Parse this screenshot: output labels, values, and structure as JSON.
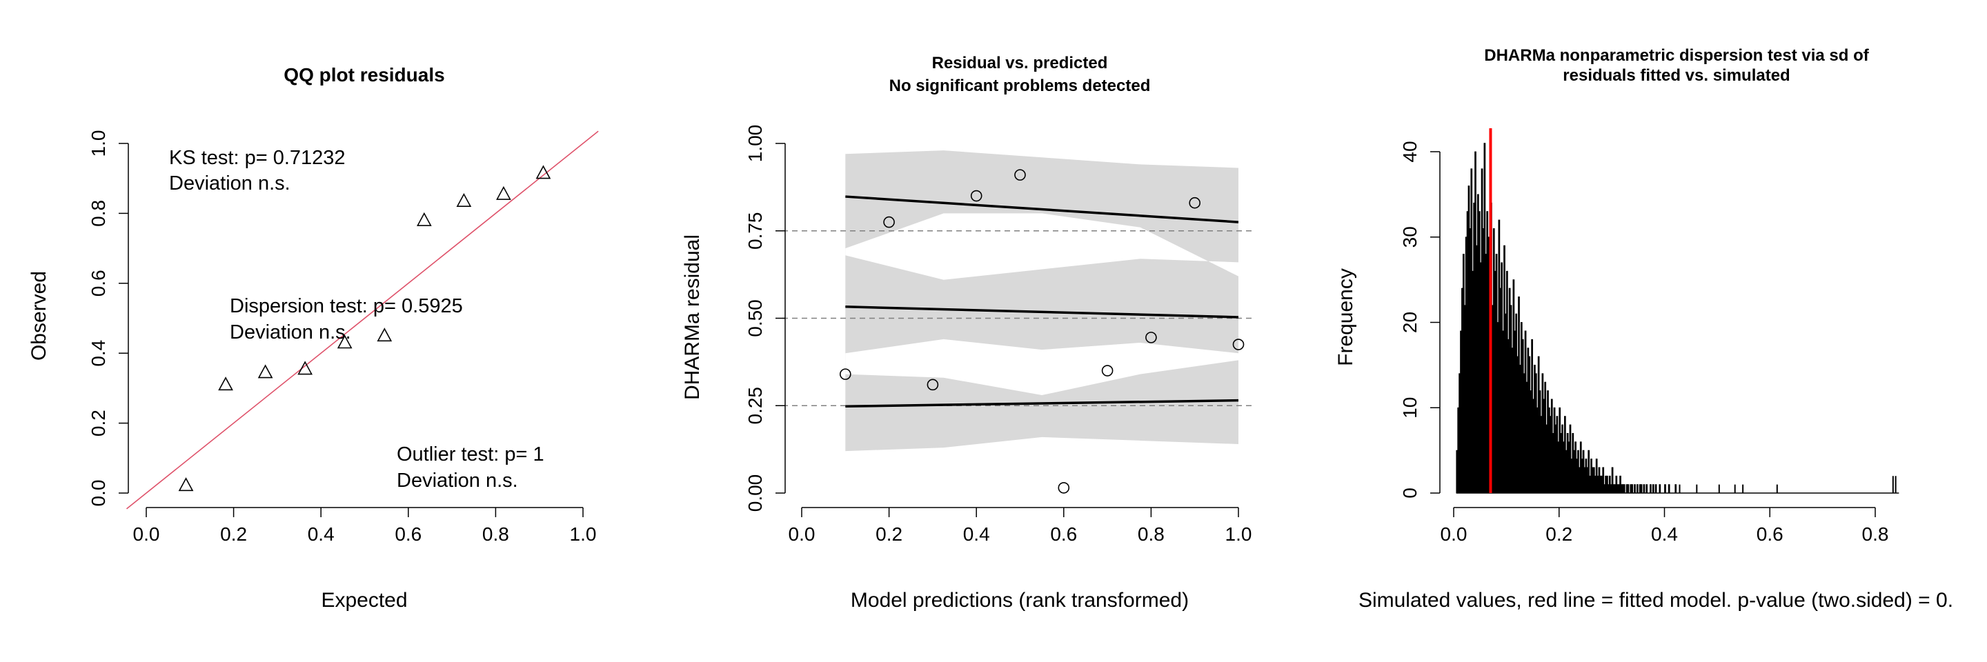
{
  "colors": {
    "qq_line": "#df536b",
    "band": "#d9d9d9",
    "fitted_line": "#ff0000",
    "ink": "#000000"
  },
  "chart_data": [
    {
      "type": "scatter",
      "title": "QQ plot residuals",
      "xlabel": "Expected",
      "ylabel": "Observed",
      "xlim": [
        0,
        1
      ],
      "ylim": [
        0,
        1
      ],
      "x_ticks": [
        "0.0",
        "0.2",
        "0.4",
        "0.6",
        "0.8",
        "1.0"
      ],
      "y_ticks": [
        "0.0",
        "0.2",
        "0.4",
        "0.6",
        "0.8",
        "1.0"
      ],
      "marker": "triangle",
      "points": [
        {
          "x": 0.0909,
          "y": 0.022
        },
        {
          "x": 0.1818,
          "y": 0.31
        },
        {
          "x": 0.2727,
          "y": 0.345
        },
        {
          "x": 0.3636,
          "y": 0.355
        },
        {
          "x": 0.4545,
          "y": 0.43
        },
        {
          "x": 0.5455,
          "y": 0.45
        },
        {
          "x": 0.6364,
          "y": 0.78
        },
        {
          "x": 0.7273,
          "y": 0.835
        },
        {
          "x": 0.8182,
          "y": 0.855
        },
        {
          "x": 0.9091,
          "y": 0.915
        }
      ],
      "reference_line": {
        "intercept": 0,
        "slope": 1
      },
      "annotations": {
        "ks_line1": "KS test: p= 0.71232",
        "ks_line2": "Deviation  n.s.",
        "disp_line1": "Dispersion test: p= 0.5925",
        "disp_line2": "Deviation  n.s.",
        "outlier_line1": "Outlier test: p= 1",
        "outlier_line2": "Deviation  n.s."
      }
    },
    {
      "type": "scatter",
      "title": "Residual vs. predicted",
      "subtitle": "No significant problems detected",
      "xlabel": "Model predictions (rank transformed)",
      "ylabel": "DHARMa residual",
      "xlim": [
        0,
        1
      ],
      "ylim": [
        0,
        1
      ],
      "x_ticks": [
        "0.0",
        "0.2",
        "0.4",
        "0.6",
        "0.8",
        "1.0"
      ],
      "y_ticks": [
        "0.00",
        "0.25",
        "0.50",
        "0.75",
        "1.00"
      ],
      "marker": "circle",
      "points": [
        {
          "x": 0.1,
          "y": 0.34
        },
        {
          "x": 0.2,
          "y": 0.775
        },
        {
          "x": 0.3,
          "y": 0.31
        },
        {
          "x": 0.4,
          "y": 0.85
        },
        {
          "x": 0.5,
          "y": 0.91
        },
        {
          "x": 0.6,
          "y": 0.015
        },
        {
          "x": 0.7,
          "y": 0.35
        },
        {
          "x": 0.8,
          "y": 0.445
        },
        {
          "x": 0.9,
          "y": 0.83
        },
        {
          "x": 1.0,
          "y": 0.425
        }
      ],
      "reference_lines": [
        0.25,
        0.5,
        0.75
      ],
      "quantile_fits": [
        {
          "q": 0.25,
          "start": 0.248,
          "end": 0.265,
          "band_upper": [
            0.72,
            0.96,
            0.97,
            0.93,
            0.35
          ],
          "band_lower": [
            0.12,
            0.62,
            0.58,
            0.68,
            0.14
          ]
        },
        {
          "q": 0.5,
          "start": 0.533,
          "end": 0.503
        },
        {
          "q": 0.75,
          "start": 0.848,
          "end": 0.775
        }
      ],
      "band_x": [
        0.1,
        0.325,
        0.55,
        0.775,
        1.0
      ]
    },
    {
      "type": "bar",
      "title": "DHARMa nonparametric dispersion test via sd of",
      "subtitle": "residuals fitted vs. simulated",
      "xlabel": "Simulated values, red line = fitted model. p-value (two.sided) = 0.",
      "ylabel": "Frequency",
      "xlim": [
        0,
        0.85
      ],
      "ylim": [
        0,
        40
      ],
      "x_ticks": [
        "0.0",
        "0.2",
        "0.4",
        "0.6",
        "0.8"
      ],
      "y_ticks": [
        "0",
        "10",
        "20",
        "30",
        "40"
      ],
      "bin_width": 0.0025,
      "hist_x_start": 0.005,
      "frequencies": [
        5,
        10,
        14,
        19,
        24,
        28,
        22,
        30,
        33,
        36,
        31,
        38,
        26,
        34,
        40,
        29,
        35,
        33,
        27,
        38,
        31,
        41,
        28,
        33,
        30,
        25,
        34,
        22,
        31,
        26,
        28,
        20,
        32,
        24,
        27,
        19,
        29,
        21,
        26,
        18,
        24,
        22,
        17,
        25,
        19,
        21,
        16,
        23,
        15,
        20,
        18,
        14,
        19,
        13,
        17,
        16,
        12,
        18,
        11,
        15,
        14,
        10,
        16,
        12,
        9,
        14,
        11,
        13,
        8,
        12,
        10,
        9,
        11,
        7,
        10,
        8,
        9,
        6,
        10,
        7,
        8,
        6,
        9,
        5,
        7,
        6,
        8,
        4,
        7,
        5,
        6,
        4,
        5,
        3,
        6,
        4,
        5,
        3,
        4,
        3,
        5,
        2,
        4,
        3,
        3,
        2,
        4,
        2,
        3,
        2,
        2,
        3,
        1,
        2,
        2,
        1,
        2,
        1,
        3,
        1,
        1,
        2,
        1,
        1,
        2,
        1,
        1,
        1,
        0,
        1,
        1,
        0,
        1,
        1,
        0,
        1,
        0,
        1,
        0,
        1,
        1,
        0,
        1,
        0,
        1,
        0,
        0,
        1,
        0,
        1,
        0,
        1,
        0,
        0,
        1,
        0,
        0,
        0,
        1,
        0,
        0,
        1,
        0,
        0,
        0,
        0,
        1
      ],
      "extra_bars": [
        {
          "x": 0.4075,
          "f": 1
        },
        {
          "x": 0.4275,
          "f": 1
        },
        {
          "x": 0.46,
          "f": 1
        },
        {
          "x": 0.5025,
          "f": 1
        },
        {
          "x": 0.5325,
          "f": 1
        },
        {
          "x": 0.5475,
          "f": 1
        },
        {
          "x": 0.6125,
          "f": 1
        },
        {
          "x": 0.8325,
          "f": 2
        },
        {
          "x": 0.8375,
          "f": 2
        }
      ],
      "fitted_value": 0.07
    }
  ]
}
